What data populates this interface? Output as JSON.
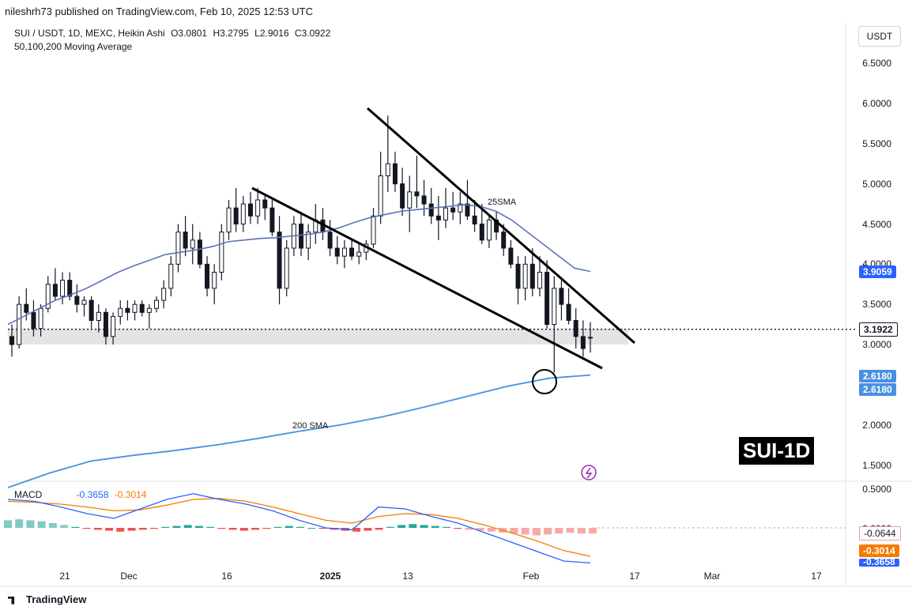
{
  "header": {
    "published": "nileshrh73 published on TradingView.com, Feb 10, 2025 12:53 UTC"
  },
  "legend": {
    "symbol": "SUI / USDT, 1D, MEXC, Heikin Ashi",
    "open": "O3.0801",
    "high": "H3.2795",
    "low": "L2.9016",
    "close": "C3.0922",
    "indicator": "50,100,200 Moving Average"
  },
  "currency": "USDT",
  "price_axis": [
    "6.5000",
    "6.0000",
    "5.5000",
    "5.0000",
    "4.5000",
    "4.0000",
    "3.5000",
    "3.0000",
    "2.0000",
    "1.5000"
  ],
  "price_tags": {
    "sma25": "3.9059",
    "current": "3.1922",
    "sma200_a": "2.6180",
    "sma200_b": "2.6180"
  },
  "macd_axis": [
    "0.5000",
    "0.0000"
  ],
  "macd_tags": {
    "hist": "-0.0644",
    "signal": "-0.3014",
    "macd": "-0.3658"
  },
  "macd_legend": {
    "label": "MACD",
    "macd": "-0.3658",
    "signal": "-0.3014"
  },
  "annotations": {
    "sma25": "25SMA",
    "sma200": "200 SMA",
    "title": "SUI-1D"
  },
  "x_axis": [
    {
      "label": "21",
      "bold": false
    },
    {
      "label": "Dec",
      "bold": false
    },
    {
      "label": "16",
      "bold": false
    },
    {
      "label": "2025",
      "bold": true
    },
    {
      "label": "13",
      "bold": false
    },
    {
      "label": "Feb",
      "bold": false
    },
    {
      "label": "17",
      "bold": false
    },
    {
      "label": "Mar",
      "bold": false
    },
    {
      "label": "17",
      "bold": false
    }
  ],
  "footer": "TradingView",
  "colors": {
    "candle_up": "#ffffff",
    "candle_down": "#131722",
    "sma25": "#5b72b8",
    "sma200": "#4a90e2",
    "macd": "#2962ff",
    "signal": "#f57c00",
    "hist_pos": "#26a69a",
    "hist_neg": "#ef5350"
  },
  "chart_data": {
    "type": "candlestick",
    "style": "Heikin Ashi",
    "ylim": [
      1.3,
      6.9
    ],
    "candles": [
      [
        3.1,
        3.25,
        2.85,
        3.0
      ],
      [
        3.0,
        3.6,
        2.95,
        3.5
      ],
      [
        3.5,
        3.7,
        3.3,
        3.4
      ],
      [
        3.4,
        3.55,
        3.1,
        3.2
      ],
      [
        3.2,
        3.5,
        3.1,
        3.45
      ],
      [
        3.45,
        3.85,
        3.4,
        3.75
      ],
      [
        3.75,
        3.95,
        3.55,
        3.6
      ],
      [
        3.6,
        3.9,
        3.5,
        3.8
      ],
      [
        3.8,
        3.9,
        3.55,
        3.6
      ],
      [
        3.6,
        3.75,
        3.4,
        3.5
      ],
      [
        3.5,
        3.6,
        3.35,
        3.55
      ],
      [
        3.55,
        3.6,
        3.2,
        3.3
      ],
      [
        3.3,
        3.5,
        3.15,
        3.4
      ],
      [
        3.4,
        3.45,
        3.0,
        3.1
      ],
      [
        3.1,
        3.4,
        3.0,
        3.35
      ],
      [
        3.35,
        3.55,
        3.25,
        3.45
      ],
      [
        3.45,
        3.55,
        3.3,
        3.4
      ],
      [
        3.4,
        3.55,
        3.3,
        3.5
      ],
      [
        3.5,
        3.55,
        3.35,
        3.4
      ],
      [
        3.4,
        3.5,
        3.2,
        3.45
      ],
      [
        3.45,
        3.6,
        3.4,
        3.55
      ],
      [
        3.55,
        3.8,
        3.45,
        3.7
      ],
      [
        3.7,
        4.1,
        3.6,
        4.0
      ],
      [
        4.0,
        4.5,
        3.9,
        4.4
      ],
      [
        4.4,
        4.6,
        4.1,
        4.2
      ],
      [
        4.2,
        4.5,
        4.0,
        4.3
      ],
      [
        4.3,
        4.4,
        3.95,
        4.0
      ],
      [
        4.0,
        4.1,
        3.6,
        3.7
      ],
      [
        3.7,
        4.0,
        3.5,
        3.9
      ],
      [
        3.9,
        4.5,
        3.8,
        4.4
      ],
      [
        4.4,
        4.8,
        4.3,
        4.7
      ],
      [
        4.7,
        4.95,
        4.4,
        4.5
      ],
      [
        4.5,
        4.85,
        4.4,
        4.75
      ],
      [
        4.75,
        4.9,
        4.5,
        4.6
      ],
      [
        4.6,
        4.95,
        4.5,
        4.8
      ],
      [
        4.8,
        4.85,
        4.55,
        4.7
      ],
      [
        4.7,
        4.8,
        4.35,
        4.4
      ],
      [
        4.4,
        4.6,
        3.5,
        3.7
      ],
      [
        3.7,
        4.3,
        3.6,
        4.2
      ],
      [
        4.2,
        4.6,
        4.1,
        4.5
      ],
      [
        4.5,
        4.65,
        4.1,
        4.2
      ],
      [
        4.2,
        4.5,
        4.05,
        4.4
      ],
      [
        4.4,
        4.75,
        4.25,
        4.55
      ],
      [
        4.55,
        4.7,
        4.3,
        4.4
      ],
      [
        4.4,
        4.55,
        4.1,
        4.2
      ],
      [
        4.2,
        4.35,
        4.0,
        4.1
      ],
      [
        4.1,
        4.3,
        3.95,
        4.2
      ],
      [
        4.2,
        4.3,
        4.05,
        4.1
      ],
      [
        4.1,
        4.25,
        4.0,
        4.15
      ],
      [
        4.15,
        4.3,
        4.05,
        4.25
      ],
      [
        4.25,
        4.7,
        4.2,
        4.6
      ],
      [
        4.6,
        5.4,
        4.5,
        5.1
      ],
      [
        5.1,
        5.85,
        4.9,
        5.25
      ],
      [
        5.25,
        5.4,
        4.9,
        5.0
      ],
      [
        5.0,
        5.2,
        4.6,
        4.7
      ],
      [
        4.7,
        5.1,
        4.4,
        4.9
      ],
      [
        4.9,
        5.35,
        4.7,
        4.85
      ],
      [
        4.85,
        5.05,
        4.6,
        4.75
      ],
      [
        4.75,
        4.95,
        4.5,
        4.6
      ],
      [
        4.6,
        4.85,
        4.3,
        4.55
      ],
      [
        4.55,
        4.95,
        4.45,
        4.7
      ],
      [
        4.7,
        4.9,
        4.55,
        4.65
      ],
      [
        4.65,
        4.9,
        4.5,
        4.75
      ],
      [
        4.75,
        5.05,
        4.55,
        4.6
      ],
      [
        4.6,
        4.8,
        4.4,
        4.5
      ],
      [
        4.5,
        4.75,
        4.25,
        4.3
      ],
      [
        4.3,
        4.6,
        4.2,
        4.55
      ],
      [
        4.55,
        4.65,
        4.3,
        4.4
      ],
      [
        4.4,
        4.5,
        4.1,
        4.2
      ],
      [
        4.2,
        4.3,
        3.95,
        4.0
      ],
      [
        4.0,
        4.1,
        3.5,
        3.7
      ],
      [
        3.7,
        4.1,
        3.55,
        4.0
      ],
      [
        4.0,
        4.2,
        3.6,
        3.7
      ],
      [
        3.7,
        4.1,
        3.6,
        3.9
      ],
      [
        3.9,
        4.05,
        3.2,
        3.25
      ],
      [
        3.25,
        3.85,
        2.65,
        3.7
      ],
      [
        3.7,
        3.8,
        3.3,
        3.5
      ],
      [
        3.5,
        3.7,
        3.25,
        3.3
      ],
      [
        3.3,
        3.45,
        2.95,
        3.1
      ],
      [
        3.1,
        3.3,
        2.85,
        2.95
      ],
      [
        3.08,
        3.28,
        2.9,
        3.09
      ]
    ],
    "sma25": [
      3.25,
      3.35,
      3.45,
      3.55,
      3.62,
      3.7,
      3.8,
      3.9,
      3.98,
      4.05,
      4.12,
      4.15,
      4.18,
      4.22,
      4.28,
      4.3,
      4.32,
      4.33,
      4.35,
      4.37,
      4.4,
      4.45,
      4.52,
      4.58,
      4.62,
      4.66,
      4.68,
      4.7,
      4.72,
      4.74,
      4.72,
      4.66,
      4.55,
      4.4,
      4.25,
      4.1,
      3.95,
      3.91
    ],
    "sma200": [
      1.22,
      1.4,
      1.55,
      1.62,
      1.68,
      1.75,
      1.83,
      1.92,
      2.0,
      2.1,
      2.22,
      2.35,
      2.48,
      2.58,
      2.62
    ],
    "macd": [
      0.3,
      0.28,
      0.22,
      0.15,
      0.1,
      0.2,
      0.3,
      0.36,
      0.3,
      0.25,
      0.18,
      0.08,
      0.0,
      -0.02,
      0.22,
      0.2,
      0.12,
      0.05,
      -0.05,
      -0.15,
      -0.25,
      -0.35,
      -0.37
    ],
    "signal": [
      0.28,
      0.27,
      0.25,
      0.22,
      0.18,
      0.19,
      0.24,
      0.3,
      0.31,
      0.28,
      0.22,
      0.15,
      0.08,
      0.05,
      0.12,
      0.15,
      0.14,
      0.1,
      0.03,
      -0.05,
      -0.14,
      -0.24,
      -0.3
    ],
    "histogram": [
      0.08,
      0.09,
      0.08,
      0.07,
      0.05,
      0.03,
      0.01,
      -0.01,
      -0.02,
      -0.03,
      -0.04,
      -0.03,
      -0.02,
      -0.01,
      0.01,
      0.02,
      0.03,
      0.02,
      0.01,
      -0.01,
      -0.02,
      -0.03,
      -0.02,
      -0.01,
      0.01,
      0.02,
      0.01,
      0.0,
      -0.01,
      -0.02,
      -0.03,
      -0.04,
      -0.03,
      -0.02,
      0.01,
      0.03,
      0.04,
      0.03,
      0.02,
      0.01,
      -0.01,
      -0.02,
      -0.03,
      -0.04,
      -0.05,
      -0.06,
      -0.07,
      -0.08,
      -0.07,
      -0.06,
      -0.05,
      -0.06,
      -0.06
    ]
  }
}
